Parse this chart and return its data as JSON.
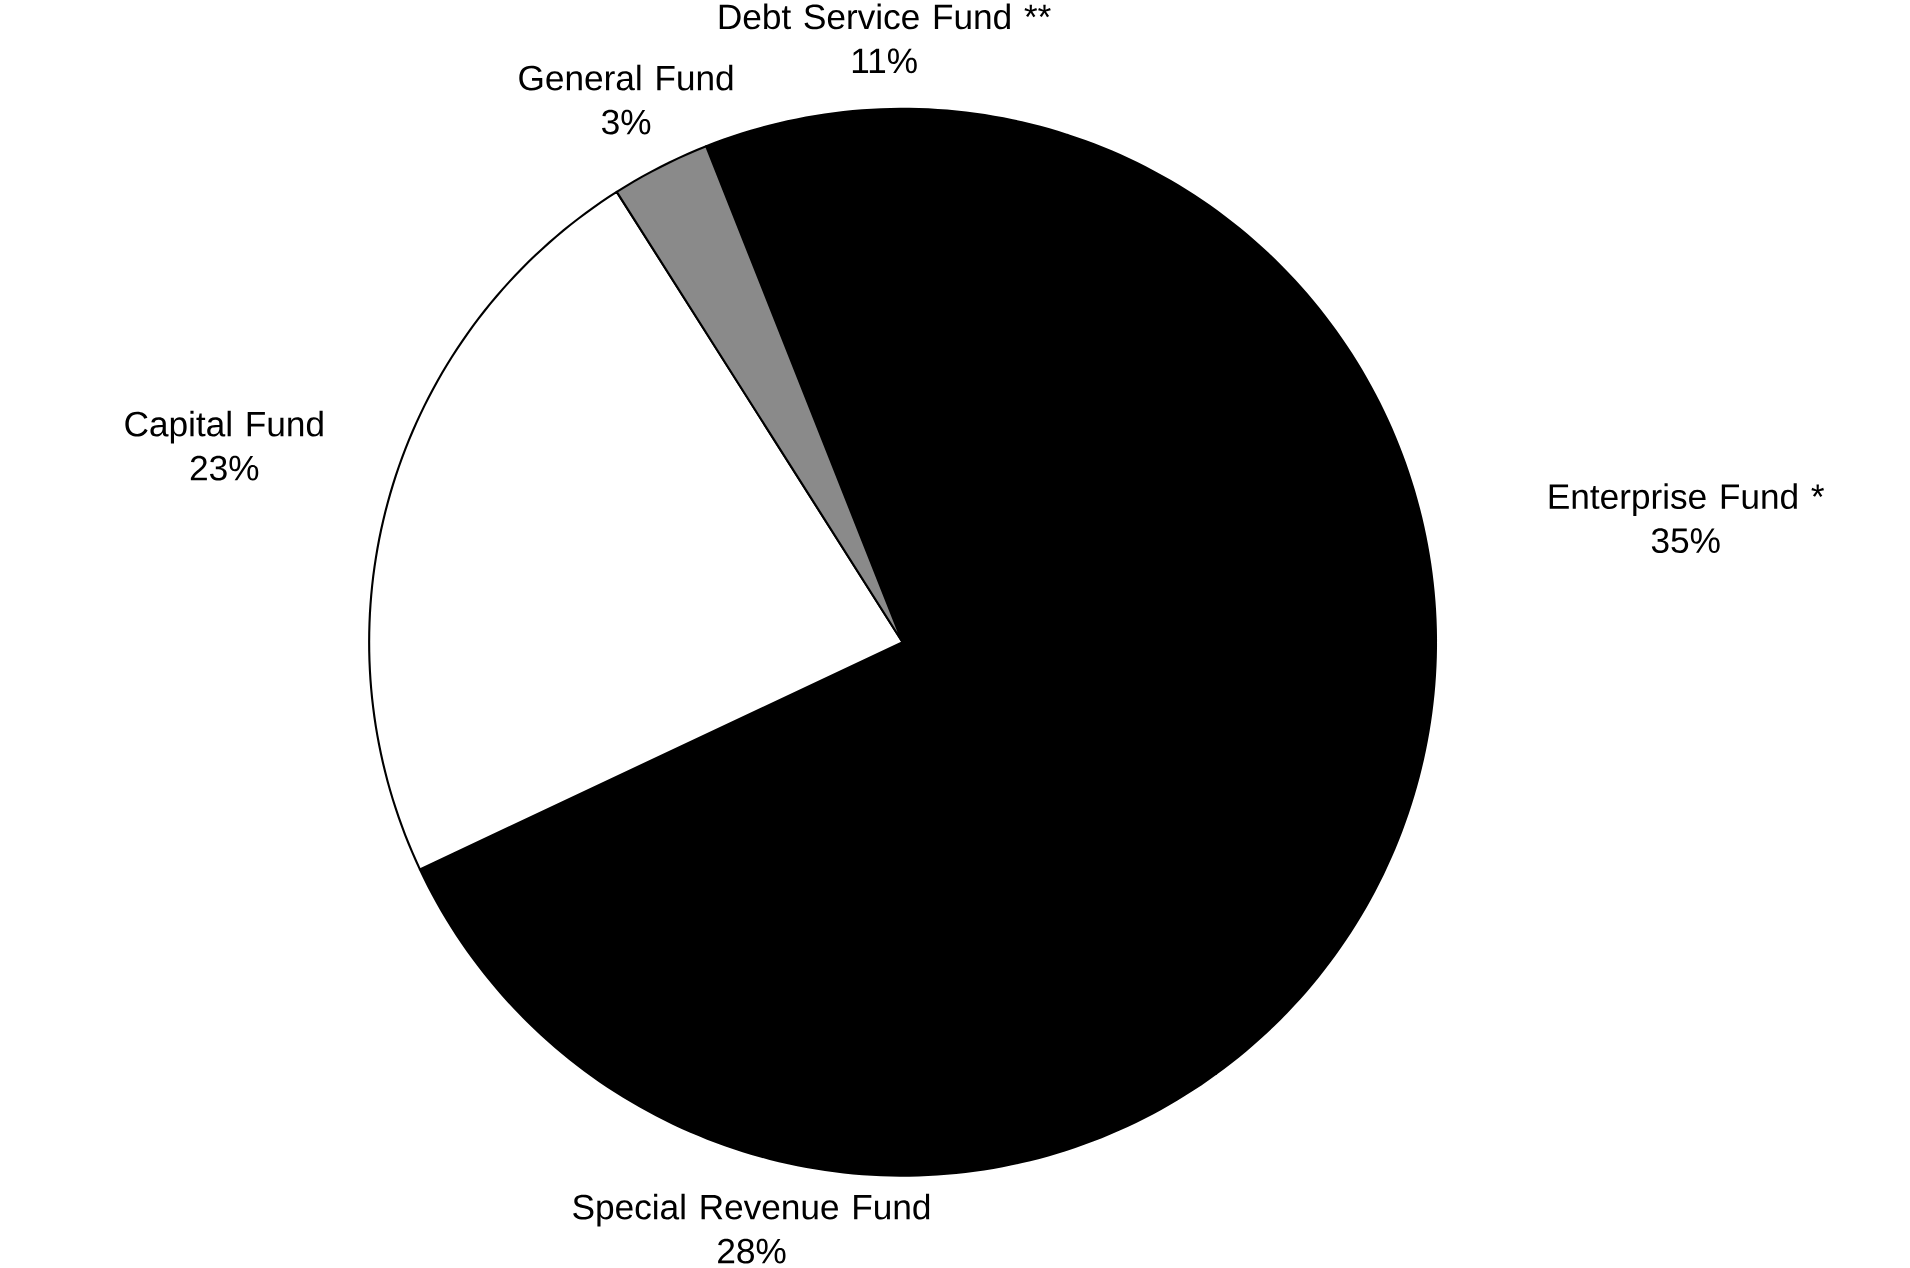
{
  "chart_data": {
    "type": "pie",
    "categories": [
      "Debt Service Fund **",
      "Enterprise Fund *",
      "Special Revenue Fund",
      "Capital Fund",
      "General Fund"
    ],
    "values": [
      11,
      35,
      28,
      23,
      3
    ],
    "value_labels": [
      "11%",
      "35%",
      "28%",
      "23%",
      "3%"
    ],
    "colors": [
      "#000000",
      "#000000",
      "#000000",
      "#ffffff",
      "#8a8a8a"
    ]
  }
}
